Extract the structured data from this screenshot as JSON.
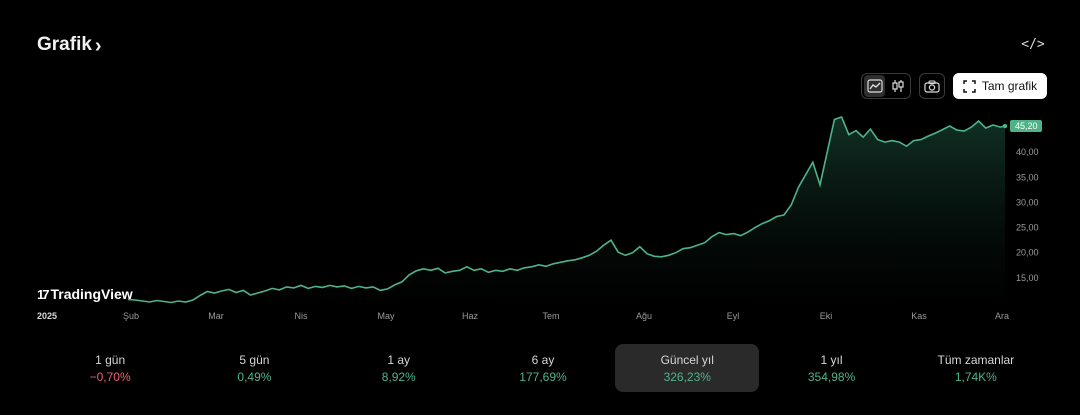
{
  "header": {
    "title": "Grafik",
    "chevron": "›",
    "embed_icon": "code-icon",
    "embed_glyph": "</>"
  },
  "toolbar": {
    "area_chart_icon": "area-chart-icon",
    "candle_chart_icon": "candlestick-icon",
    "snapshot_icon": "camera-icon",
    "fullscreen_label": "Tam grafik",
    "fullscreen_icon": "expand-icon"
  },
  "branding": {
    "logo_mark": "17",
    "logo_text": "TradingView"
  },
  "colors": {
    "line": "#4fb38a",
    "price_tag": "#4fb38a",
    "negative": "#f0616a",
    "background": "#000000"
  },
  "chart_data": {
    "type": "area",
    "x_labels": [
      "2025",
      "Şub",
      "Mar",
      "Nis",
      "May",
      "Haz",
      "Tem",
      "Ağu",
      "Eyl",
      "Eki",
      "Kas",
      "Ara"
    ],
    "y_ticks": [
      "15,00",
      "20,00",
      "25,00",
      "30,00",
      "35,00",
      "40,00"
    ],
    "last_price_label": "45,20",
    "ylim": [
      10.6,
      47
    ],
    "points": [
      [
        0,
        10.7
      ],
      [
        3,
        10.6
      ],
      [
        6,
        10.4
      ],
      [
        9,
        10.2
      ],
      [
        12,
        10.5
      ],
      [
        15,
        10.3
      ],
      [
        18,
        10.1
      ],
      [
        21,
        10.4
      ],
      [
        24,
        10.2
      ],
      [
        27,
        10.6
      ],
      [
        30,
        11.5
      ],
      [
        33,
        12.3
      ],
      [
        36,
        12.0
      ],
      [
        39,
        12.4
      ],
      [
        42,
        12.7
      ],
      [
        45,
        12.1
      ],
      [
        48,
        12.5
      ],
      [
        51,
        11.6
      ],
      [
        54,
        12.0
      ],
      [
        57,
        12.4
      ],
      [
        60,
        12.9
      ],
      [
        63,
        12.6
      ],
      [
        66,
        13.2
      ],
      [
        69,
        13.0
      ],
      [
        72,
        13.5
      ],
      [
        75,
        12.9
      ],
      [
        78,
        13.3
      ],
      [
        81,
        13.1
      ],
      [
        84,
        13.5
      ],
      [
        87,
        13.2
      ],
      [
        90,
        13.4
      ],
      [
        93,
        12.9
      ],
      [
        96,
        13.3
      ],
      [
        99,
        13.0
      ],
      [
        102,
        13.2
      ],
      [
        105,
        12.5
      ],
      [
        108,
        12.8
      ],
      [
        111,
        13.6
      ],
      [
        114,
        14.2
      ],
      [
        117,
        15.6
      ],
      [
        120,
        16.4
      ],
      [
        123,
        16.8
      ],
      [
        126,
        16.5
      ],
      [
        129,
        16.9
      ],
      [
        132,
        16.0
      ],
      [
        135,
        16.3
      ],
      [
        138,
        16.5
      ],
      [
        141,
        17.2
      ],
      [
        144,
        16.5
      ],
      [
        147,
        16.8
      ],
      [
        150,
        16.1
      ],
      [
        153,
        16.5
      ],
      [
        156,
        16.3
      ],
      [
        159,
        16.8
      ],
      [
        162,
        16.5
      ],
      [
        165,
        17.0
      ],
      [
        168,
        17.2
      ],
      [
        171,
        17.6
      ],
      [
        174,
        17.3
      ],
      [
        177,
        17.8
      ],
      [
        180,
        18.1
      ],
      [
        183,
        18.4
      ],
      [
        186,
        18.6
      ],
      [
        189,
        19.0
      ],
      [
        192,
        19.5
      ],
      [
        195,
        20.3
      ],
      [
        198,
        21.5
      ],
      [
        201,
        22.5
      ],
      [
        204,
        20.1
      ],
      [
        207,
        19.5
      ],
      [
        210,
        20.0
      ],
      [
        213,
        21.2
      ],
      [
        216,
        19.8
      ],
      [
        219,
        19.3
      ],
      [
        222,
        19.2
      ],
      [
        225,
        19.5
      ],
      [
        228,
        20.0
      ],
      [
        231,
        20.8
      ],
      [
        234,
        21.0
      ],
      [
        237,
        21.5
      ],
      [
        240,
        22.0
      ],
      [
        243,
        23.2
      ],
      [
        246,
        24.0
      ],
      [
        249,
        23.6
      ],
      [
        252,
        23.8
      ],
      [
        255,
        23.4
      ],
      [
        258,
        24.1
      ],
      [
        261,
        25.0
      ],
      [
        264,
        25.8
      ],
      [
        267,
        26.4
      ],
      [
        270,
        27.2
      ],
      [
        273,
        27.5
      ],
      [
        276,
        29.5
      ],
      [
        279,
        33.0
      ],
      [
        282,
        35.5
      ],
      [
        285,
        38.0
      ],
      [
        288,
        33.5
      ],
      [
        291,
        40.0
      ],
      [
        294,
        46.5
      ],
      [
        297,
        47.0
      ],
      [
        300,
        43.5
      ],
      [
        303,
        44.3
      ],
      [
        306,
        43.0
      ],
      [
        309,
        44.6
      ],
      [
        312,
        42.5
      ],
      [
        315,
        42.0
      ],
      [
        318,
        42.3
      ],
      [
        321,
        42.0
      ],
      [
        324,
        41.2
      ],
      [
        327,
        42.3
      ],
      [
        330,
        42.5
      ],
      [
        333,
        43.2
      ],
      [
        336,
        43.8
      ],
      [
        339,
        44.5
      ],
      [
        342,
        45.2
      ],
      [
        345,
        44.4
      ],
      [
        348,
        44.2
      ],
      [
        351,
        45.0
      ],
      [
        354,
        46.2
      ],
      [
        357,
        44.8
      ],
      [
        360,
        45.4
      ],
      [
        363,
        45.0
      ],
      [
        365,
        45.2
      ]
    ]
  },
  "periods": [
    {
      "label": "1 gün",
      "change": "−0,70%",
      "sign": "neg"
    },
    {
      "label": "5 gün",
      "change": "0,49%",
      "sign": "pos"
    },
    {
      "label": "1 ay",
      "change": "8,92%",
      "sign": "pos"
    },
    {
      "label": "6 ay",
      "change": "177,69%",
      "sign": "pos"
    },
    {
      "label": "Güncel yıl",
      "change": "326,23%",
      "sign": "pos",
      "selected": true
    },
    {
      "label": "1 yıl",
      "change": "354,98%",
      "sign": "pos"
    },
    {
      "label": "Tüm zamanlar",
      "change": "1,74K%",
      "sign": "pos"
    }
  ]
}
